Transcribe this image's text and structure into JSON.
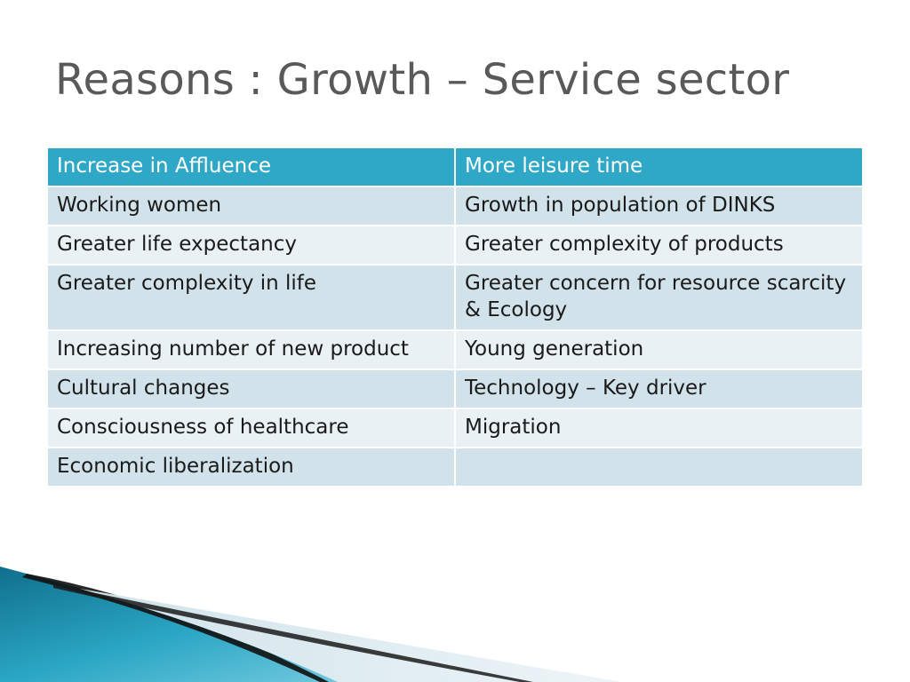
{
  "slide": {
    "title": "Reasons : Growth – Service sector"
  },
  "table": {
    "headers": [
      "Increase in  Affluence",
      "More leisure time"
    ],
    "rows": [
      [
        "Working women",
        "Growth in population of DINKS"
      ],
      [
        "Greater life expectancy",
        "Greater complexity of products"
      ],
      [
        "Greater complexity in life",
        "Greater concern for resource scarcity & Ecology"
      ],
      [
        "Increasing number of new product",
        "Young generation"
      ],
      [
        "Cultural changes",
        "Technology – Key driver"
      ],
      [
        "Consciousness of healthcare",
        "Migration"
      ],
      [
        "Economic liberalization",
        ""
      ]
    ]
  },
  "colors": {
    "header_bg": "#2fa8c7",
    "row_odd_bg": "#d2e2ea",
    "row_even_bg": "#e9f1f5",
    "title_color": "#595959",
    "accent_teal": "#1b8fb0"
  }
}
